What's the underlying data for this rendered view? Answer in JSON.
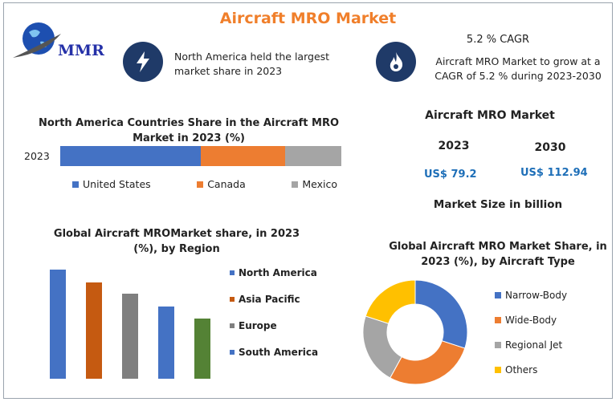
{
  "title": "Aircraft MRO Market",
  "logo_text": "MMR",
  "highlight1": {
    "icon": "lightning-icon",
    "text": "North America held the largest market share in 2023"
  },
  "highlight2": {
    "icon": "flame-icon",
    "heading": "5.2 % CAGR",
    "text": "Aircraft MRO Market to grow at a CAGR of 5.2 % during 2023-2030"
  },
  "market_size": {
    "heading": "Aircraft MRO Market",
    "year1": "2023",
    "year2": "2030",
    "value1": "US$ 79.2",
    "value2": "US$ 112.94",
    "unit": "Market Size in billion"
  },
  "colors": {
    "accent": "#f07f2b",
    "blue": "#4472c4",
    "orange": "#ed7d31",
    "gray": "#a5a5a5",
    "yellow": "#ffc000",
    "rust": "#c55a11",
    "darkgray": "#7f7f7f",
    "green": "#548235"
  },
  "chart_data": [
    {
      "type": "bar",
      "orientation": "horizontal-stacked",
      "title": "North America Countries Share in the  Aircraft MRO Market  in 2023 (%)",
      "categories": [
        "2023"
      ],
      "series": [
        {
          "name": "United States",
          "values": [
            50
          ]
        },
        {
          "name": "Canada",
          "values": [
            30
          ]
        },
        {
          "name": "Mexico",
          "values": [
            20
          ]
        }
      ],
      "legend": "bottom"
    },
    {
      "type": "bar",
      "title": "Global Aircraft MROMarket share, in 2023 (%), by Region",
      "categories": [
        "North America",
        "Asia Pacific",
        "Europe",
        "South America",
        ""
      ],
      "values": [
        136,
        120,
        106,
        90,
        75
      ],
      "legend": "right",
      "legend_entries": [
        "North America",
        "Asia Pacific",
        "Europe",
        "South America"
      ]
    },
    {
      "type": "pie",
      "donut": true,
      "title": "Global Aircraft MRO Market Share, in 2023 (%), by Aircraft Type",
      "categories": [
        "Narrow-Body",
        "Wide-Body",
        "Regional Jet",
        "Others"
      ],
      "values": [
        30,
        28,
        22,
        20
      ],
      "legend": "right"
    }
  ]
}
